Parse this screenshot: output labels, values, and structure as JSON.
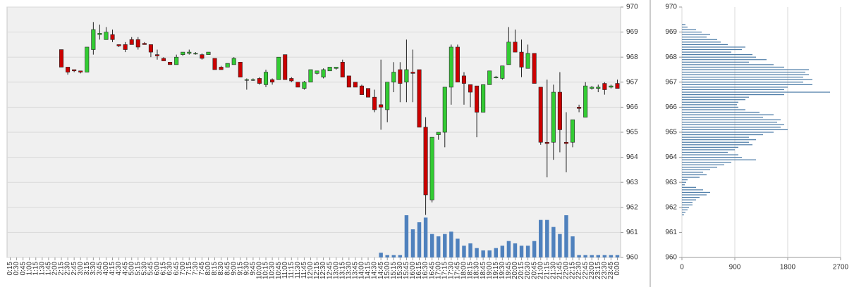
{
  "chart_data": [
    {
      "type": "candlestick",
      "categories": [
        "0:15",
        "0:30",
        "0:45",
        "1:00",
        "1:15",
        "1:30",
        "1:45",
        "2:00",
        "2:15",
        "2:30",
        "2:45",
        "3:00",
        "3:15",
        "3:30",
        "3:45",
        "4:00",
        "4:15",
        "4:30",
        "4:45",
        "5:00",
        "5:15",
        "5:30",
        "5:45",
        "6:00",
        "6:15",
        "6:30",
        "6:45",
        "7:00",
        "7:15",
        "7:30",
        "7:45",
        "8:00",
        "8:15",
        "8:30",
        "8:45",
        "9:00",
        "9:15",
        "9:30",
        "9:45",
        "10:00",
        "10:15",
        "10:30",
        "10:45",
        "11:00",
        "11:15",
        "11:30",
        "11:45",
        "12:00",
        "12:15",
        "12:30",
        "12:45",
        "13:00",
        "13:15",
        "13:30",
        "13:45",
        "14:00",
        "14:15",
        "14:30",
        "14:45",
        "15:00",
        "15:15",
        "15:30",
        "15:45",
        "16:00",
        "16:15",
        "16:30",
        "16:45",
        "17:00",
        "17:15",
        "17:30",
        "17:45",
        "18:00",
        "18:15",
        "18:30",
        "18:45",
        "19:00",
        "19:15",
        "19:30",
        "19:45",
        "20:00",
        "20:15",
        "20:30",
        "20:45",
        "21:00",
        "21:15",
        "21:30",
        "21:45",
        "22:00",
        "22:15",
        "22:30",
        "22:45",
        "23:00",
        "23:15",
        "23:30",
        "23:45",
        "0:00"
      ],
      "open": [
        null,
        null,
        null,
        null,
        null,
        null,
        null,
        null,
        968.3,
        967.6,
        967.5,
        967.45,
        967.4,
        968.3,
        968.9,
        968.7,
        968.9,
        968.5,
        968.5,
        968.7,
        968.7,
        968.55,
        968.5,
        968.1,
        967.95,
        967.8,
        967.7,
        968.1,
        968.15,
        968.15,
        968.1,
        968.1,
        967.95,
        967.6,
        967.6,
        967.7,
        967.8,
        967.1,
        967.1,
        967.15,
        966.9,
        967.1,
        967.1,
        968.1,
        967.15,
        967.0,
        966.75,
        967.0,
        967.35,
        967.2,
        967.45,
        967.55,
        967.8,
        967.25,
        967.0,
        966.85,
        966.75,
        966.4,
        966.1,
        965.9,
        967.0,
        967.5,
        967.0,
        967.4,
        967.5,
        965.2,
        962.3,
        964.9,
        965.0,
        966.8,
        968.4,
        967.25,
        966.9,
        966.85,
        965.8,
        966.9,
        967.2,
        967.15,
        967.7,
        968.6,
        968.2,
        967.55,
        968.15,
        966.8,
        964.6,
        964.6,
        966.6,
        964.6,
        964.6,
        966.0,
        965.6,
        966.75,
        966.75,
        966.95,
        966.8,
        966.95
      ],
      "high": [
        null,
        null,
        null,
        null,
        null,
        null,
        null,
        null,
        968.3,
        967.6,
        967.5,
        967.45,
        968.4,
        969.4,
        969.3,
        969.2,
        969.1,
        968.5,
        968.6,
        968.8,
        968.8,
        968.6,
        968.5,
        968.3,
        968.0,
        967.8,
        968.1,
        968.2,
        968.3,
        968.2,
        968.15,
        968.2,
        967.95,
        967.65,
        967.75,
        968.0,
        967.8,
        967.15,
        967.15,
        967.2,
        967.5,
        967.15,
        968.0,
        968.1,
        967.2,
        967.0,
        967.05,
        967.5,
        967.45,
        967.55,
        967.6,
        967.6,
        967.9,
        967.25,
        967.0,
        966.9,
        966.75,
        966.7,
        967.9,
        967.0,
        967.8,
        967.8,
        968.7,
        968.3,
        967.5,
        965.6,
        964.8,
        965.0,
        966.8,
        968.5,
        968.5,
        967.4,
        966.9,
        966.85,
        966.9,
        967.45,
        967.25,
        967.65,
        969.2,
        969.1,
        968.7,
        968.5,
        968.15,
        966.8,
        967.1,
        966.9,
        967.4,
        965.8,
        965.5,
        966.1,
        967.0,
        966.85,
        966.9,
        967.0,
        966.9,
        967.1
      ],
      "low": [
        null,
        null,
        null,
        null,
        null,
        null,
        null,
        null,
        967.6,
        967.3,
        967.4,
        967.35,
        967.4,
        968.1,
        968.7,
        968.7,
        968.6,
        968.4,
        968.2,
        968.5,
        968.3,
        968.5,
        968.0,
        967.9,
        967.85,
        967.7,
        967.7,
        968.05,
        968.1,
        968.1,
        967.9,
        968.1,
        967.5,
        967.5,
        967.6,
        967.7,
        967.2,
        966.7,
        967.05,
        966.9,
        966.8,
        966.9,
        967.1,
        967.1,
        967.0,
        966.8,
        966.7,
        967.0,
        967.3,
        967.15,
        967.45,
        967.5,
        967.2,
        966.8,
        966.8,
        966.5,
        966.4,
        965.8,
        965.1,
        965.4,
        966.6,
        966.2,
        966.2,
        966.2,
        965.2,
        961.7,
        962.2,
        964.7,
        964.4,
        966.1,
        967.0,
        966.1,
        966.0,
        964.8,
        965.8,
        966.9,
        967.15,
        967.1,
        967.7,
        968.2,
        967.2,
        967.55,
        966.95,
        964.5,
        963.2,
        963.9,
        964.2,
        963.4,
        964.4,
        965.8,
        965.6,
        966.7,
        966.6,
        966.5,
        966.75,
        966.75
      ],
      "close": [
        null,
        null,
        null,
        null,
        null,
        null,
        null,
        null,
        967.6,
        967.4,
        967.45,
        967.4,
        968.4,
        969.1,
        968.95,
        969.0,
        968.7,
        968.45,
        968.3,
        968.5,
        968.4,
        968.5,
        968.2,
        968.05,
        967.85,
        967.7,
        968.0,
        968.2,
        968.2,
        968.15,
        967.95,
        968.2,
        967.5,
        967.5,
        967.75,
        967.95,
        967.2,
        967.1,
        967.1,
        966.95,
        967.4,
        967.0,
        968.0,
        967.1,
        967.05,
        966.8,
        967.0,
        967.5,
        967.45,
        967.5,
        967.6,
        967.6,
        967.2,
        966.8,
        966.8,
        966.5,
        966.4,
        965.9,
        966.0,
        967.0,
        967.4,
        966.95,
        967.5,
        967.35,
        965.2,
        962.5,
        964.8,
        965.0,
        966.8,
        968.4,
        967.0,
        966.95,
        966.6,
        965.8,
        966.9,
        967.45,
        967.2,
        967.65,
        968.6,
        968.2,
        967.6,
        968.15,
        966.95,
        964.6,
        964.55,
        966.6,
        965.1,
        964.55,
        965.5,
        965.95,
        966.85,
        966.8,
        966.8,
        966.7,
        966.85,
        966.75
      ],
      "volume": [
        null,
        null,
        null,
        null,
        null,
        null,
        null,
        null,
        null,
        null,
        null,
        null,
        null,
        null,
        null,
        null,
        null,
        null,
        null,
        null,
        null,
        null,
        null,
        null,
        null,
        null,
        null,
        null,
        null,
        null,
        null,
        null,
        null,
        null,
        null,
        null,
        null,
        null,
        null,
        null,
        null,
        null,
        null,
        null,
        null,
        null,
        null,
        null,
        null,
        null,
        null,
        null,
        null,
        null,
        null,
        null,
        null,
        null,
        2,
        1,
        1,
        1,
        18,
        12,
        15,
        17,
        10,
        9,
        10,
        11,
        8,
        5,
        6,
        4,
        3,
        3,
        4,
        5,
        7,
        6,
        5,
        5,
        7,
        16,
        16,
        13,
        10,
        18,
        9,
        1,
        1,
        1,
        1,
        1,
        1,
        1
      ],
      "up_color": "#33cc33",
      "down_color": "#cc0000",
      "volume_color": "#4f81bd",
      "ylim": [
        960,
        970
      ],
      "yticks": [
        960,
        961,
        962,
        963,
        964,
        965,
        966,
        967,
        968,
        969,
        970
      ],
      "grid": true
    },
    {
      "type": "bar",
      "orientation": "horizontal",
      "y": [
        969.3,
        969.2,
        969.1,
        969.0,
        968.9,
        968.8,
        968.7,
        968.6,
        968.5,
        968.4,
        968.3,
        968.2,
        968.1,
        968.0,
        967.9,
        967.8,
        967.7,
        967.6,
        967.5,
        967.4,
        967.3,
        967.2,
        967.1,
        967.0,
        966.9,
        966.8,
        966.7,
        966.6,
        966.5,
        966.4,
        966.3,
        966.2,
        966.1,
        966.0,
        965.9,
        965.8,
        965.7,
        965.6,
        965.5,
        965.4,
        965.3,
        965.2,
        965.1,
        965.0,
        964.9,
        964.8,
        964.7,
        964.6,
        964.5,
        964.4,
        964.3,
        964.2,
        964.1,
        964.0,
        963.9,
        963.8,
        963.7,
        963.6,
        963.5,
        963.4,
        963.3,
        963.2,
        963.1,
        963.0,
        962.9,
        962.8,
        962.7,
        962.6,
        962.5,
        962.4,
        962.3,
        962.2,
        962.1,
        962.0,
        961.9,
        961.8,
        961.7
      ],
      "values": [
        60,
        96,
        240,
        336,
        480,
        420,
        600,
        660,
        780,
        1080,
        1020,
        840,
        1200,
        1260,
        1440,
        1140,
        1560,
        1740,
        2160,
        2100,
        2160,
        2064,
        2220,
        2064,
        2220,
        1800,
        1740,
        2520,
        1740,
        1140,
        1080,
        960,
        936,
        960,
        1080,
        1320,
        1560,
        1380,
        1680,
        1620,
        1740,
        1680,
        1800,
        1560,
        1380,
        1140,
        1260,
        1140,
        1200,
        960,
        900,
        780,
        960,
        1020,
        1260,
        840,
        720,
        600,
        480,
        360,
        420,
        300,
        96,
        72,
        48,
        240,
        360,
        480,
        420,
        300,
        240,
        180,
        180,
        120,
        96,
        60,
        36
      ],
      "color": "#4a7aa6",
      "xlim": [
        0,
        2700
      ],
      "xticks": [
        0,
        900,
        1800,
        2700
      ],
      "ylim": [
        960,
        970
      ],
      "yticks": [
        960,
        961,
        962,
        963,
        964,
        965,
        966,
        967,
        968,
        969,
        970
      ],
      "grid": true
    }
  ]
}
